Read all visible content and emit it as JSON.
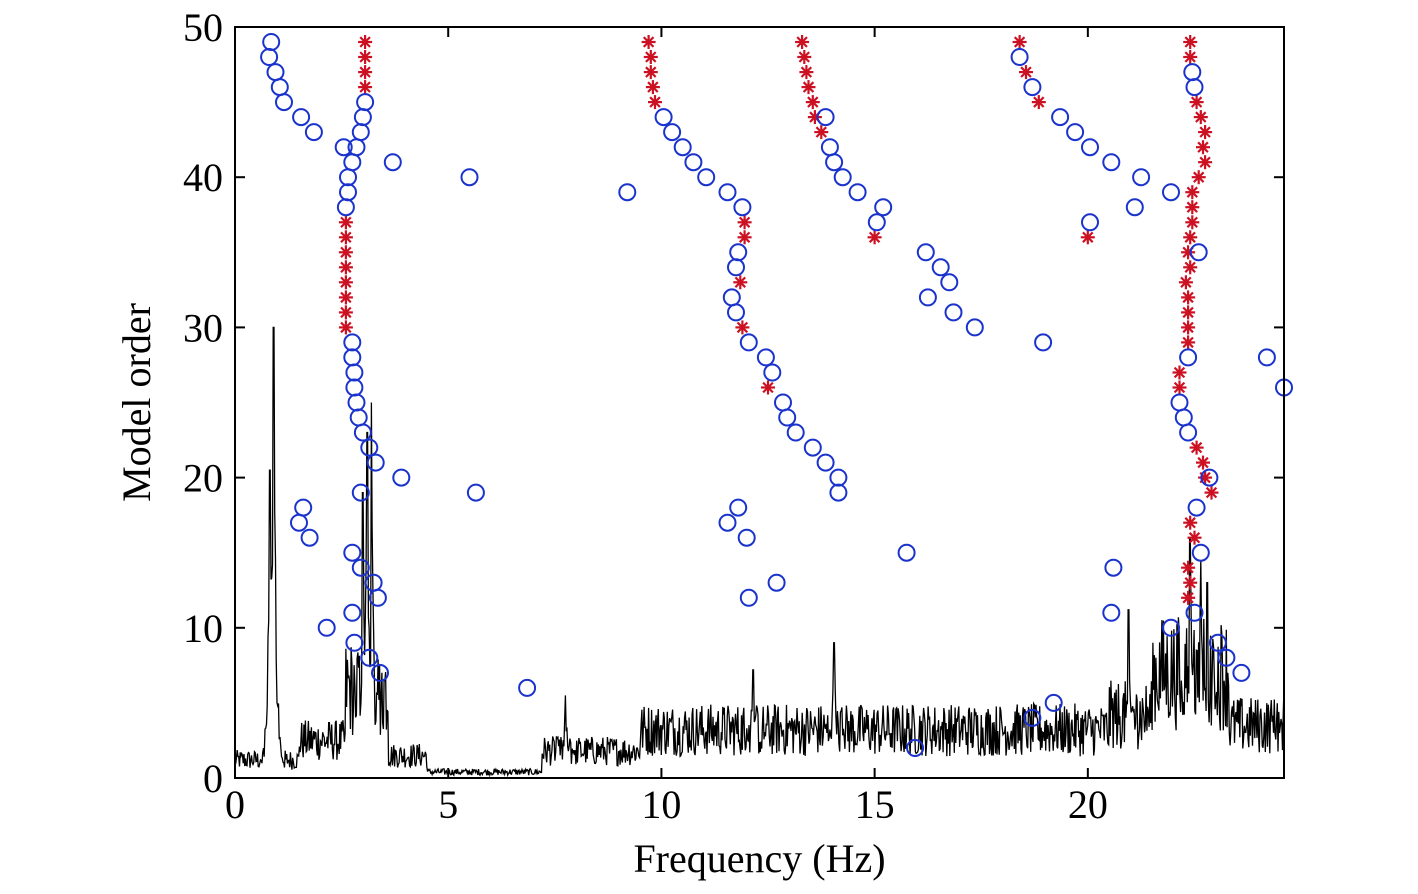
{
  "chart_data": {
    "type": "scatter",
    "title": "",
    "xlabel": "Frequency (Hz)",
    "ylabel": "Model order",
    "xlim": [
      0,
      24.6
    ],
    "ylim": [
      0,
      50
    ],
    "x_ticks": [
      0,
      5,
      10,
      15,
      20
    ],
    "y_ticks": [
      0,
      10,
      20,
      30,
      40,
      50
    ],
    "grid": false,
    "legend": "none",
    "colors": {
      "stable": "#cc1122",
      "unstable": "#1a33cc",
      "spectrum": "#000000",
      "axes": "#000000"
    },
    "series": [
      {
        "marker": "star",
        "points": [
          [
            3.05,
            49
          ],
          [
            3.05,
            48
          ],
          [
            3.05,
            47
          ],
          [
            3.05,
            46
          ],
          [
            2.6,
            37
          ],
          [
            2.6,
            36
          ],
          [
            2.6,
            35
          ],
          [
            2.6,
            34
          ],
          [
            2.6,
            33
          ],
          [
            2.6,
            32
          ],
          [
            2.6,
            31
          ],
          [
            2.6,
            30
          ],
          [
            9.7,
            49
          ],
          [
            9.75,
            48
          ],
          [
            9.75,
            47
          ],
          [
            9.8,
            46
          ],
          [
            9.85,
            45
          ],
          [
            11.95,
            37
          ],
          [
            11.95,
            36
          ],
          [
            11.85,
            33
          ],
          [
            11.9,
            30
          ],
          [
            12.5,
            26
          ],
          [
            13.3,
            49
          ],
          [
            13.35,
            48
          ],
          [
            13.4,
            47
          ],
          [
            13.45,
            46
          ],
          [
            13.55,
            45
          ],
          [
            13.6,
            44
          ],
          [
            13.75,
            43
          ],
          [
            15.0,
            36
          ],
          [
            18.4,
            49
          ],
          [
            18.55,
            47
          ],
          [
            18.85,
            45
          ],
          [
            20.0,
            36
          ],
          [
            22.4,
            49
          ],
          [
            22.4,
            48
          ],
          [
            22.55,
            45
          ],
          [
            22.65,
            44
          ],
          [
            22.75,
            43
          ],
          [
            22.7,
            42
          ],
          [
            22.75,
            41
          ],
          [
            22.6,
            40
          ],
          [
            22.45,
            39
          ],
          [
            22.45,
            38
          ],
          [
            22.45,
            37
          ],
          [
            22.4,
            36
          ],
          [
            22.35,
            35
          ],
          [
            22.4,
            34
          ],
          [
            22.3,
            33
          ],
          [
            22.35,
            32
          ],
          [
            22.35,
            31
          ],
          [
            22.35,
            30
          ],
          [
            22.35,
            29
          ],
          [
            22.15,
            27
          ],
          [
            22.15,
            26
          ],
          [
            22.55,
            22
          ],
          [
            22.7,
            21
          ],
          [
            22.75,
            20
          ],
          [
            22.9,
            19
          ],
          [
            22.4,
            17
          ],
          [
            22.5,
            16
          ],
          [
            22.35,
            14
          ],
          [
            22.4,
            13
          ],
          [
            22.35,
            12
          ]
        ]
      },
      {
        "marker": "circle",
        "points": [
          [
            0.85,
            49
          ],
          [
            0.8,
            48
          ],
          [
            0.95,
            47
          ],
          [
            1.05,
            46
          ],
          [
            1.15,
            45
          ],
          [
            1.55,
            44
          ],
          [
            1.85,
            43
          ],
          [
            3.05,
            45
          ],
          [
            3.0,
            44
          ],
          [
            2.95,
            43
          ],
          [
            2.55,
            42
          ],
          [
            2.85,
            42
          ],
          [
            2.75,
            41
          ],
          [
            2.65,
            40
          ],
          [
            2.65,
            39
          ],
          [
            2.6,
            38
          ],
          [
            3.7,
            41
          ],
          [
            5.5,
            40
          ],
          [
            9.2,
            39
          ],
          [
            2.75,
            29
          ],
          [
            2.75,
            28
          ],
          [
            2.8,
            27
          ],
          [
            2.8,
            26
          ],
          [
            2.85,
            25
          ],
          [
            2.9,
            24
          ],
          [
            3.0,
            23
          ],
          [
            3.15,
            22
          ],
          [
            3.3,
            21
          ],
          [
            3.9,
            20
          ],
          [
            2.95,
            19
          ],
          [
            5.65,
            19
          ],
          [
            1.6,
            18
          ],
          [
            1.5,
            17
          ],
          [
            1.75,
            16
          ],
          [
            2.75,
            15
          ],
          [
            2.95,
            14
          ],
          [
            3.25,
            13
          ],
          [
            3.35,
            12
          ],
          [
            2.75,
            11
          ],
          [
            2.15,
            10
          ],
          [
            2.8,
            9
          ],
          [
            3.15,
            8
          ],
          [
            3.4,
            7
          ],
          [
            6.85,
            6
          ],
          [
            10.05,
            44
          ],
          [
            10.25,
            43
          ],
          [
            10.5,
            42
          ],
          [
            10.75,
            41
          ],
          [
            11.05,
            40
          ],
          [
            11.55,
            39
          ],
          [
            11.9,
            38
          ],
          [
            11.8,
            35
          ],
          [
            11.75,
            34
          ],
          [
            11.65,
            32
          ],
          [
            11.75,
            31
          ],
          [
            12.05,
            29
          ],
          [
            12.45,
            28
          ],
          [
            12.6,
            27
          ],
          [
            12.85,
            25
          ],
          [
            12.95,
            24
          ],
          [
            13.15,
            23
          ],
          [
            13.55,
            22
          ],
          [
            13.85,
            21
          ],
          [
            14.15,
            20
          ],
          [
            14.15,
            19
          ],
          [
            11.8,
            18
          ],
          [
            11.55,
            17
          ],
          [
            12.0,
            16
          ],
          [
            12.7,
            13
          ],
          [
            12.05,
            12
          ],
          [
            13.85,
            44
          ],
          [
            13.95,
            42
          ],
          [
            14.05,
            41
          ],
          [
            14.25,
            40
          ],
          [
            14.6,
            39
          ],
          [
            15.2,
            38
          ],
          [
            15.05,
            37
          ],
          [
            16.2,
            35
          ],
          [
            16.55,
            34
          ],
          [
            16.75,
            33
          ],
          [
            16.25,
            32
          ],
          [
            16.85,
            31
          ],
          [
            17.35,
            30
          ],
          [
            15.75,
            15
          ],
          [
            15.95,
            2
          ],
          [
            18.4,
            48
          ],
          [
            18.7,
            46
          ],
          [
            19.35,
            44
          ],
          [
            19.7,
            43
          ],
          [
            20.05,
            42
          ],
          [
            20.55,
            41
          ],
          [
            21.25,
            40
          ],
          [
            21.1,
            38
          ],
          [
            20.05,
            37
          ],
          [
            18.95,
            29
          ],
          [
            20.6,
            14
          ],
          [
            20.55,
            11
          ],
          [
            18.7,
            4
          ],
          [
            19.2,
            5
          ],
          [
            21.95,
            39
          ],
          [
            22.45,
            47
          ],
          [
            22.5,
            46
          ],
          [
            22.6,
            35
          ],
          [
            22.35,
            28
          ],
          [
            22.15,
            25
          ],
          [
            22.25,
            24
          ],
          [
            22.35,
            23
          ],
          [
            22.85,
            20
          ],
          [
            22.55,
            18
          ],
          [
            22.65,
            15
          ],
          [
            22.5,
            11
          ],
          [
            21.95,
            10
          ],
          [
            23.05,
            9
          ],
          [
            23.25,
            8
          ],
          [
            23.6,
            7
          ],
          [
            24.2,
            28
          ],
          [
            24.6,
            26
          ]
        ]
      }
    ],
    "spectrum": {
      "peaks": [
        [
          0.9,
          30
        ],
        [
          0.82,
          20.5
        ],
        [
          0.95,
          12
        ],
        [
          3.1,
          23
        ],
        [
          3.2,
          25
        ],
        [
          3.0,
          19
        ],
        [
          7.75,
          5.5
        ],
        [
          12.15,
          7.2
        ],
        [
          14.05,
          9
        ],
        [
          20.95,
          11.2
        ],
        [
          22.4,
          16
        ],
        [
          22.65,
          14.5
        ],
        [
          22.8,
          13
        ],
        [
          24.6,
          6
        ]
      ],
      "baseline_ranges": [
        [
          0,
          1.5,
          1.2
        ],
        [
          1.5,
          2.6,
          2.5
        ],
        [
          2.6,
          3.6,
          6
        ],
        [
          3.6,
          4.5,
          1.5
        ],
        [
          4.5,
          7.2,
          0.4
        ],
        [
          7.2,
          9.5,
          1.8
        ],
        [
          9.5,
          20.5,
          3.2
        ],
        [
          20.5,
          21.5,
          4.2
        ],
        [
          21.5,
          23.3,
          7
        ],
        [
          23.3,
          24.6,
          3.5
        ]
      ]
    }
  }
}
